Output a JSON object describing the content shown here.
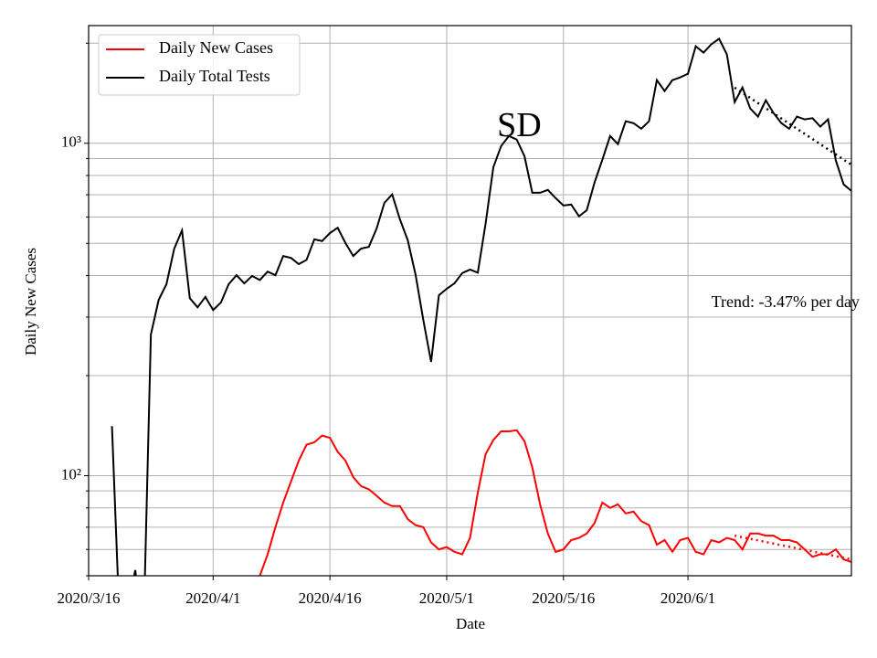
{
  "chart_data": {
    "type": "line",
    "x_label": "Date",
    "y_label": "Daily New Cases",
    "log_y": true,
    "grid": true,
    "legend": "upper left",
    "xlim": [
      "2020/3/16",
      "2020/6/22"
    ],
    "xticks": [
      "2020/3/16",
      "2020/4/1",
      "2020/4/16",
      "2020/5/1",
      "2020/5/16",
      "2020/6/1"
    ],
    "ylim": [
      50,
      2260
    ],
    "yticks": [
      {
        "value": 100,
        "label": "10²"
      },
      {
        "value": 1000,
        "label": "10³"
      }
    ],
    "yminorticks": [
      50,
      60,
      70,
      80,
      90,
      200,
      300,
      400,
      500,
      600,
      700,
      800,
      900,
      2000
    ],
    "x": [
      "2020/3/19",
      "2020/3/20",
      "2020/3/21",
      "2020/3/22",
      "2020/3/23",
      "2020/3/24",
      "2020/3/25",
      "2020/3/26",
      "2020/3/27",
      "2020/3/28",
      "2020/3/29",
      "2020/3/30",
      "2020/3/31",
      "2020/4/1",
      "2020/4/2",
      "2020/4/3",
      "2020/4/4",
      "2020/4/5",
      "2020/4/6",
      "2020/4/7",
      "2020/4/8",
      "2020/4/9",
      "2020/4/10",
      "2020/4/11",
      "2020/4/12",
      "2020/4/13",
      "2020/4/14",
      "2020/4/15",
      "2020/4/16",
      "2020/4/17",
      "2020/4/18",
      "2020/4/19",
      "2020/4/20",
      "2020/4/21",
      "2020/4/22",
      "2020/4/23",
      "2020/4/24",
      "2020/4/25",
      "2020/4/26",
      "2020/4/27",
      "2020/4/28",
      "2020/4/29",
      "2020/4/30",
      "2020/5/1",
      "2020/5/2",
      "2020/5/3",
      "2020/5/4",
      "2020/5/5",
      "2020/5/6",
      "2020/5/7",
      "2020/5/8",
      "2020/5/9",
      "2020/5/10",
      "2020/5/11",
      "2020/5/12",
      "2020/5/13",
      "2020/5/14",
      "2020/5/15",
      "2020/5/16",
      "2020/5/17",
      "2020/5/18",
      "2020/5/19",
      "2020/5/20",
      "2020/5/21",
      "2020/5/22",
      "2020/5/23",
      "2020/5/24",
      "2020/5/25",
      "2020/5/26",
      "2020/5/27",
      "2020/5/28",
      "2020/5/29",
      "2020/5/30",
      "2020/5/31",
      "2020/6/1",
      "2020/6/2",
      "2020/6/3",
      "2020/6/4",
      "2020/6/5",
      "2020/6/6",
      "2020/6/7",
      "2020/6/8",
      "2020/6/9",
      "2020/6/10",
      "2020/6/11",
      "2020/6/12",
      "2020/6/13",
      "2020/6/14",
      "2020/6/15",
      "2020/6/16",
      "2020/6/17",
      "2020/6/18",
      "2020/6/19",
      "2020/6/20",
      "2020/6/21",
      "2020/6/22"
    ],
    "series": [
      {
        "name": "Daily New Cases",
        "color": "#ff0000",
        "values": [
          null,
          null,
          null,
          null,
          null,
          null,
          null,
          null,
          null,
          null,
          null,
          null,
          null,
          null,
          null,
          null,
          null,
          null,
          null,
          50,
          58,
          70,
          83,
          96,
          111,
          124,
          126,
          132,
          130,
          118,
          111,
          99,
          93,
          91,
          87,
          83,
          81,
          81,
          74,
          71,
          70,
          63,
          60,
          61,
          59,
          58,
          65,
          89,
          116,
          128,
          136,
          136,
          137,
          127,
          106,
          82,
          67,
          59,
          60,
          64,
          65,
          67,
          72,
          83,
          80,
          82,
          77,
          78,
          73,
          71,
          62,
          64,
          59,
          64,
          65,
          59,
          58,
          64,
          63,
          65,
          64,
          60,
          67,
          67,
          66,
          66,
          64,
          64,
          63,
          60,
          57,
          58,
          58,
          60,
          56,
          55
        ]
      },
      {
        "name": "Daily Total Tests",
        "color": "#000000",
        "values": [
          141,
          35,
          40,
          52,
          30,
          266,
          338,
          377,
          482,
          547,
          342,
          321,
          345,
          315,
          332,
          377,
          401,
          379,
          399,
          388,
          411,
          401,
          458,
          452,
          433,
          446,
          514,
          508,
          537,
          557,
          501,
          458,
          482,
          488,
          554,
          662,
          702,
          590,
          511,
          403,
          294,
          220,
          349,
          365,
          379,
          407,
          417,
          408,
          573,
          848,
          981,
          1052,
          1026,
          914,
          710,
          710,
          724,
          684,
          650,
          654,
          603,
          629,
          762,
          892,
          1052,
          994,
          1165,
          1150,
          1106,
          1165,
          1549,
          1436,
          1549,
          1579,
          1619,
          1958,
          1874,
          1985,
          2063,
          1851,
          1330,
          1472,
          1273,
          1203,
          1347,
          1233,
          1150,
          1106,
          1203,
          1180,
          1190,
          1122,
          1180,
          887,
          752,
          719
        ]
      }
    ],
    "trend_lines": [
      {
        "color": "#000000",
        "x": [
          "2020/6/7",
          "2020/6/22"
        ],
        "values": [
          1470,
          862
        ]
      },
      {
        "color": "#ff0000",
        "x": [
          "2020/6/7",
          "2020/6/22"
        ],
        "values": [
          66,
          56
        ]
      }
    ],
    "annotations": [
      {
        "text": "SD",
        "x": "2020/5/11",
        "y": 1110
      },
      {
        "text": "Trend: -3.47% per day",
        "x": "2020/6/4",
        "y": 330
      }
    ]
  }
}
